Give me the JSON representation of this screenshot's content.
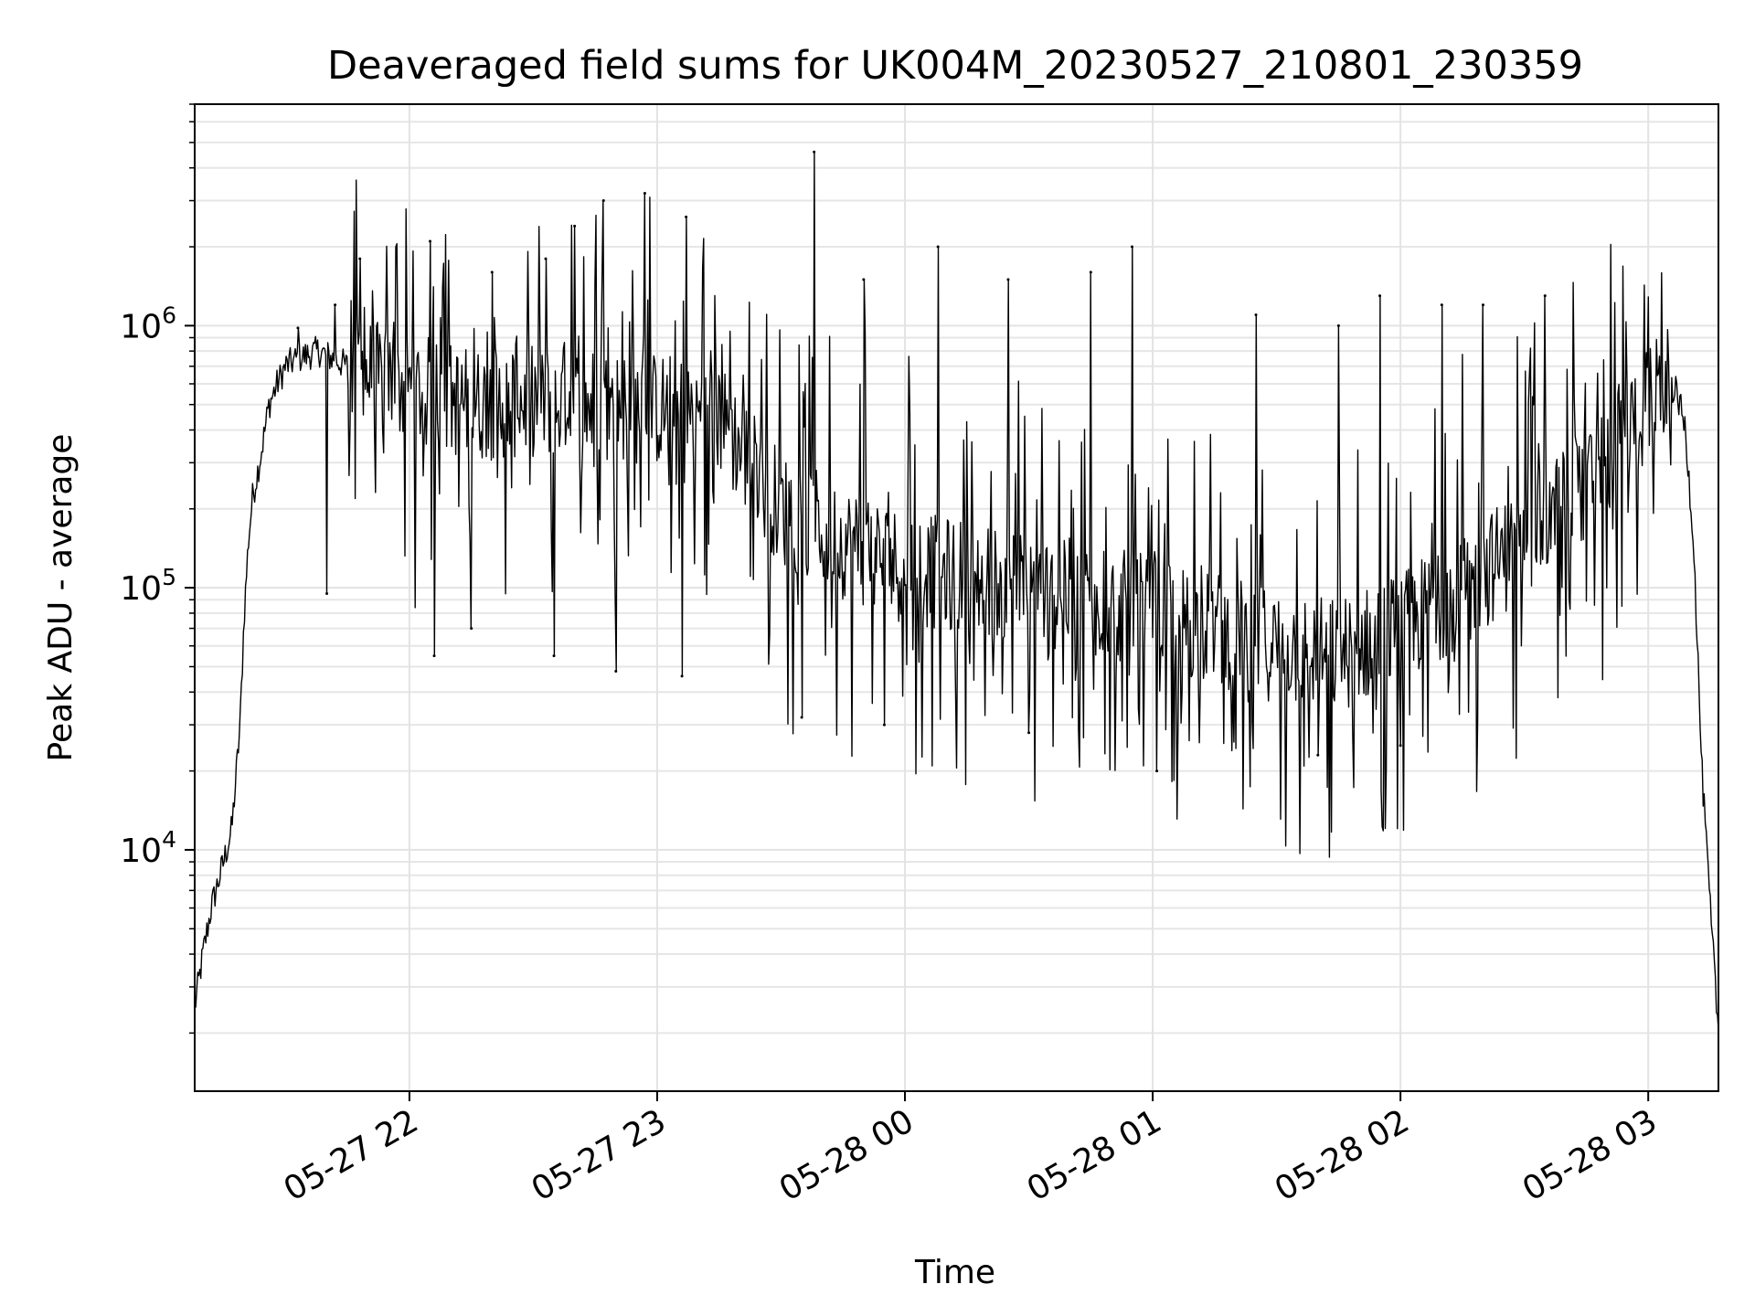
{
  "chart_data": {
    "type": "line",
    "title": "Deaveraged field sums for UK004M_20230527_210801_230359",
    "xlabel": "Time",
    "ylabel": "Peak ADU - average",
    "yscale": "log",
    "ylim": [
      1200,
      7000000
    ],
    "xlim": [
      "2023-05-27 21:08:00",
      "2023-05-28 03:17:00"
    ],
    "x_ticks": [
      {
        "value": "2023-05-27 22:00",
        "label": "05-27 22"
      },
      {
        "value": "2023-05-27 23:00",
        "label": "05-27 23"
      },
      {
        "value": "2023-05-28 00:00",
        "label": "05-28 00"
      },
      {
        "value": "2023-05-28 01:00",
        "label": "05-28 01"
      },
      {
        "value": "2023-05-28 02:00",
        "label": "05-28 02"
      },
      {
        "value": "2023-05-28 03:00",
        "label": "05-28 03"
      }
    ],
    "y_ticks": [
      {
        "value": 10000,
        "base": "10",
        "exp": "4"
      },
      {
        "value": 100000,
        "base": "10",
        "exp": "5"
      },
      {
        "value": 1000000,
        "base": "10",
        "exp": "6"
      }
    ],
    "grid": true,
    "line_color": "#000000",
    "series": [
      {
        "x": [
          "2023-05-27 21:08",
          "2023-05-27 21:10",
          "2023-05-27 21:12",
          "2023-05-27 21:15",
          "2023-05-27 21:17",
          "2023-05-27 21:19",
          "2023-05-27 21:20",
          "2023-05-27 21:21",
          "2023-05-27 21:22",
          "2023-05-27 21:24",
          "2023-05-27 21:26",
          "2023-05-27 21:28",
          "2023-05-27 21:30",
          "2023-05-27 21:33",
          "2023-05-27 21:38",
          "2023-05-27 21:45",
          "2023-05-27 21:55",
          "2023-05-27 22:05",
          "2023-05-27 22:15",
          "2023-05-27 22:30",
          "2023-05-27 22:45",
          "2023-05-27 23:00",
          "2023-05-27 23:15",
          "2023-05-27 23:30",
          "2023-05-27 23:45",
          "2023-05-28 00:00",
          "2023-05-28 00:15",
          "2023-05-28 00:30",
          "2023-05-28 00:45",
          "2023-05-28 01:00",
          "2023-05-28 01:15",
          "2023-05-28 01:30",
          "2023-05-28 01:45",
          "2023-05-28 02:00",
          "2023-05-28 02:15",
          "2023-05-28 02:30",
          "2023-05-28 02:45",
          "2023-05-28 02:55",
          "2023-05-28 03:02",
          "2023-05-28 03:05",
          "2023-05-28 03:07",
          "2023-05-28 03:09",
          "2023-05-28 03:11",
          "2023-05-28 03:13",
          "2023-05-28 03:15",
          "2023-05-28 03:17"
        ],
        "y": [
          2500,
          4000,
          6000,
          9000,
          12000,
          30000,
          80000,
          150000,
          220000,
          320000,
          500000,
          600000,
          700000,
          750000,
          800000,
          700000,
          600000,
          550000,
          500000,
          520000,
          500000,
          480000,
          450000,
          200000,
          150000,
          120000,
          110000,
          100000,
          90000,
          80000,
          70000,
          60000,
          55000,
          70000,
          100000,
          150000,
          250000,
          400000,
          550000,
          600000,
          550000,
          400000,
          150000,
          20000,
          6000,
          2000
        ]
      }
    ],
    "peaks": [
      {
        "x": "2023-05-27 21:33",
        "y": 980000
      },
      {
        "x": "2023-05-27 21:42",
        "y": 1200000
      },
      {
        "x": "2023-05-27 21:48",
        "y": 1800000
      },
      {
        "x": "2023-05-27 22:05",
        "y": 2100000
      },
      {
        "x": "2023-05-27 22:20",
        "y": 1600000
      },
      {
        "x": "2023-05-27 22:33",
        "y": 1800000
      },
      {
        "x": "2023-05-27 22:40",
        "y": 2400000
      },
      {
        "x": "2023-05-27 22:47",
        "y": 3000000
      },
      {
        "x": "2023-05-27 22:57",
        "y": 3200000
      },
      {
        "x": "2023-05-27 23:07",
        "y": 2600000
      },
      {
        "x": "2023-05-27 23:38",
        "y": 4600000
      },
      {
        "x": "2023-05-27 23:50",
        "y": 1500000
      },
      {
        "x": "2023-05-28 00:08",
        "y": 2000000
      },
      {
        "x": "2023-05-28 00:25",
        "y": 1500000
      },
      {
        "x": "2023-05-28 00:45",
        "y": 1600000
      },
      {
        "x": "2023-05-28 00:55",
        "y": 2000000
      },
      {
        "x": "2023-05-28 01:25",
        "y": 1100000
      },
      {
        "x": "2023-05-28 01:45",
        "y": 1000000
      },
      {
        "x": "2023-05-28 01:55",
        "y": 1300000
      },
      {
        "x": "2023-05-28 02:10",
        "y": 1200000
      },
      {
        "x": "2023-05-28 02:20",
        "y": 1200000
      },
      {
        "x": "2023-05-28 02:35",
        "y": 1300000
      }
    ],
    "dips": [
      {
        "x": "2023-05-27 21:40",
        "y": 95000
      },
      {
        "x": "2023-05-27 22:06",
        "y": 55000
      },
      {
        "x": "2023-05-27 22:15",
        "y": 70000
      },
      {
        "x": "2023-05-27 22:35",
        "y": 55000
      },
      {
        "x": "2023-05-27 22:50",
        "y": 48000
      },
      {
        "x": "2023-05-27 23:06",
        "y": 46000
      },
      {
        "x": "2023-05-27 23:35",
        "y": 32000
      },
      {
        "x": "2023-05-27 23:55",
        "y": 30000
      },
      {
        "x": "2023-05-28 00:30",
        "y": 28000
      },
      {
        "x": "2023-05-28 01:01",
        "y": 20000
      },
      {
        "x": "2023-05-28 01:40",
        "y": 23000
      },
      {
        "x": "2023-05-28 02:00",
        "y": 25000
      }
    ]
  }
}
